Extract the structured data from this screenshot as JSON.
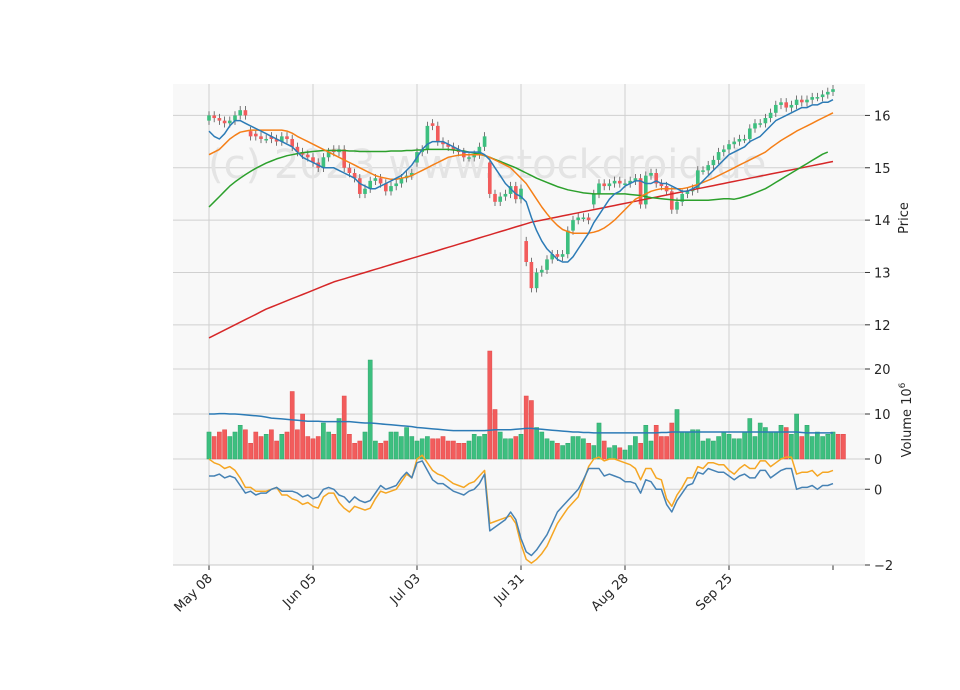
{
  "chart_data": {
    "type": "candlestick",
    "watermark": "(c) 2023 www.stockdroid.de",
    "x_tick_labels": [
      "May 08",
      "Jun 05",
      "Jul 03",
      "Jul 31",
      "Aug 28",
      "Sep 25"
    ],
    "x_tick_index": [
      0,
      20,
      40,
      60,
      80,
      100
    ],
    "colors": {
      "up": "#3dbf7f",
      "down": "#f25c5c",
      "ma_fast": "#2c7bb6",
      "ma_mid": "#f57f17",
      "ma_slow": "#2ca02c",
      "ma_long": "#d62728",
      "vol_ma": "#2c7bb6",
      "osc_a": "#4682b4",
      "osc_b": "#f5a623",
      "grid": "#d0d0d0",
      "panel_bg": "#f8f8f8"
    },
    "price_panel": {
      "ylabel": "Price",
      "ylim": [
        11.5,
        16.6
      ],
      "yticks": [
        "12",
        "13",
        "14",
        "15",
        "16"
      ],
      "close": [
        16.0,
        15.95,
        15.9,
        15.85,
        15.9,
        16.0,
        16.1,
        16.0,
        15.6,
        15.6,
        15.55,
        15.55,
        15.55,
        15.5,
        15.6,
        15.55,
        15.4,
        15.3,
        15.25,
        15.2,
        15.1,
        15.0,
        15.2,
        15.3,
        15.3,
        15.35,
        15.0,
        14.9,
        14.8,
        14.5,
        14.6,
        14.75,
        14.8,
        14.7,
        14.55,
        14.65,
        14.7,
        14.8,
        14.85,
        14.9,
        15.3,
        15.35,
        15.8,
        15.8,
        15.5,
        15.45,
        15.4,
        15.35,
        15.3,
        15.2,
        15.2,
        15.25,
        15.4,
        15.6,
        14.5,
        14.35,
        14.45,
        14.5,
        14.65,
        14.4,
        14.6,
        13.2,
        12.7,
        13.0,
        13.05,
        13.25,
        13.35,
        13.3,
        13.35,
        13.8,
        14.0,
        14.05,
        14.05,
        14.0,
        14.5,
        14.7,
        14.65,
        14.7,
        14.75,
        14.7,
        14.7,
        14.75,
        14.8,
        14.3,
        14.85,
        14.9,
        14.7,
        14.65,
        14.55,
        14.2,
        14.35,
        14.5,
        14.55,
        14.6,
        14.95,
        14.95,
        15.05,
        15.15,
        15.3,
        15.35,
        15.45,
        15.5,
        15.55,
        15.55,
        15.75,
        15.85,
        15.85,
        15.95,
        16.05,
        16.2,
        16.25,
        16.15,
        16.2,
        16.3,
        16.25,
        16.3,
        16.35,
        16.35,
        16.4,
        16.45,
        16.5
      ],
      "open": [
        15.9,
        16.0,
        15.95,
        15.9,
        15.85,
        15.9,
        16.0,
        16.1,
        15.7,
        15.65,
        15.6,
        15.55,
        15.6,
        15.55,
        15.5,
        15.6,
        15.55,
        15.4,
        15.3,
        15.25,
        15.2,
        15.1,
        15.0,
        15.2,
        15.35,
        15.3,
        15.35,
        15.0,
        14.9,
        14.8,
        14.5,
        14.6,
        14.75,
        14.8,
        14.7,
        14.55,
        14.65,
        14.7,
        14.8,
        14.85,
        15.1,
        15.3,
        15.35,
        15.85,
        15.8,
        15.5,
        15.45,
        15.4,
        15.35,
        15.3,
        15.2,
        15.2,
        15.25,
        15.4,
        15.1,
        14.5,
        14.35,
        14.45,
        14.5,
        14.65,
        14.4,
        13.6,
        13.2,
        12.7,
        13.0,
        13.05,
        13.25,
        13.35,
        13.3,
        13.35,
        13.8,
        14.0,
        14.05,
        14.05,
        14.3,
        14.5,
        14.7,
        14.65,
        14.7,
        14.75,
        14.7,
        14.7,
        14.75,
        14.8,
        14.3,
        14.85,
        14.9,
        14.7,
        14.65,
        14.55,
        14.2,
        14.35,
        14.5,
        14.55,
        14.6,
        14.95,
        14.95,
        15.05,
        15.15,
        15.3,
        15.35,
        15.45,
        15.5,
        15.55,
        15.55,
        15.75,
        15.85,
        15.85,
        15.95,
        16.05,
        16.2,
        16.25,
        16.15,
        16.2,
        16.3,
        16.25,
        16.3,
        16.35,
        16.35,
        16.4,
        16.45
      ],
      "ma_fast": [
        15.7,
        15.6,
        15.55,
        15.65,
        15.8,
        15.9,
        15.9,
        15.85,
        15.8,
        15.75,
        15.7,
        15.65,
        15.6,
        15.55,
        15.5,
        15.45,
        15.4,
        15.3,
        15.2,
        15.15,
        15.1,
        15.05,
        15.0,
        15.0,
        15.0,
        14.95,
        14.9,
        14.85,
        14.8,
        14.7,
        14.65,
        14.6,
        14.6,
        14.65,
        14.7,
        14.75,
        14.8,
        14.85,
        14.95,
        15.05,
        15.2,
        15.35,
        15.45,
        15.5,
        15.5,
        15.5,
        15.45,
        15.4,
        15.35,
        15.3,
        15.3,
        15.3,
        15.3,
        15.25,
        15.15,
        15.0,
        14.85,
        14.7,
        14.6,
        14.5,
        14.45,
        14.35,
        14.05,
        13.8,
        13.6,
        13.45,
        13.35,
        13.25,
        13.2,
        13.2,
        13.3,
        13.45,
        13.6,
        13.75,
        13.95,
        14.1,
        14.25,
        14.4,
        14.5,
        14.55,
        14.65,
        14.7,
        14.75,
        14.75,
        14.7,
        14.7,
        14.75,
        14.7,
        14.7,
        14.65,
        14.6,
        14.55,
        14.55,
        14.6,
        14.65,
        14.75,
        14.85,
        14.95,
        15.05,
        15.15,
        15.25,
        15.3,
        15.35,
        15.4,
        15.5,
        15.55,
        15.6,
        15.7,
        15.8,
        15.9,
        15.95,
        16.0,
        16.05,
        16.1,
        16.15,
        16.15,
        16.2,
        16.2,
        16.25,
        16.25,
        16.3
      ],
      "ma_mid": [
        15.25,
        15.3,
        15.35,
        15.45,
        15.55,
        15.62,
        15.68,
        15.7,
        15.72,
        15.72,
        15.72,
        15.72,
        15.72,
        15.72,
        15.72,
        15.7,
        15.66,
        15.6,
        15.55,
        15.5,
        15.45,
        15.4,
        15.35,
        15.3,
        15.25,
        15.2,
        15.15,
        15.1,
        15.05,
        15.0,
        14.95,
        14.9,
        14.85,
        14.82,
        14.8,
        14.78,
        14.78,
        14.8,
        14.82,
        14.85,
        14.9,
        14.95,
        15.0,
        15.05,
        15.1,
        15.15,
        15.2,
        15.22,
        15.24,
        15.25,
        15.25,
        15.25,
        15.25,
        15.24,
        15.2,
        15.15,
        15.1,
        15.05,
        15.0,
        14.9,
        14.8,
        14.7,
        14.55,
        14.4,
        14.25,
        14.12,
        14.0,
        13.9,
        13.82,
        13.78,
        13.75,
        13.75,
        13.75,
        13.75,
        13.77,
        13.8,
        13.85,
        13.92,
        14.0,
        14.1,
        14.2,
        14.3,
        14.4,
        14.45,
        14.5,
        14.55,
        14.58,
        14.6,
        14.6,
        14.6,
        14.6,
        14.6,
        14.62,
        14.65,
        14.68,
        14.72,
        14.76,
        14.8,
        14.85,
        14.9,
        14.95,
        15.0,
        15.05,
        15.1,
        15.15,
        15.2,
        15.25,
        15.3,
        15.38,
        15.45,
        15.52,
        15.58,
        15.64,
        15.7,
        15.75,
        15.8,
        15.85,
        15.9,
        15.95,
        16.0,
        16.05
      ],
      "ma_slow": [
        14.25,
        14.35,
        14.45,
        14.55,
        14.65,
        14.73,
        14.8,
        14.87,
        14.93,
        14.99,
        15.04,
        15.09,
        15.13,
        15.17,
        15.2,
        15.23,
        15.25,
        15.27,
        15.29,
        15.3,
        15.31,
        15.32,
        15.33,
        15.33,
        15.33,
        15.33,
        15.33,
        15.32,
        15.32,
        15.31,
        15.31,
        15.31,
        15.31,
        15.31,
        15.31,
        15.32,
        15.32,
        15.32,
        15.33,
        15.33,
        15.34,
        15.34,
        15.35,
        15.35,
        15.35,
        15.35,
        15.35,
        15.34,
        15.33,
        15.32,
        15.3,
        15.28,
        15.26,
        15.23,
        15.2,
        15.16,
        15.12,
        15.08,
        15.04,
        15.0,
        14.95,
        14.9,
        14.85,
        14.8,
        14.76,
        14.72,
        14.68,
        14.64,
        14.61,
        14.58,
        14.56,
        14.54,
        14.52,
        14.51,
        14.5,
        14.5,
        14.5,
        14.5,
        14.5,
        14.5,
        14.5,
        14.49,
        14.48,
        14.47,
        14.45,
        14.43,
        14.42,
        14.41,
        14.4,
        14.39,
        14.38,
        14.38,
        14.38,
        14.38,
        14.38,
        14.38,
        14.38,
        14.39,
        14.4,
        14.41,
        14.41,
        14.4,
        14.42,
        14.45,
        14.48,
        14.52,
        14.56,
        14.6,
        14.66,
        14.72,
        14.78,
        14.84,
        14.9,
        14.96,
        15.02,
        15.08,
        15.14,
        15.2,
        15.26,
        15.3
      ],
      "ma_long": [
        11.75,
        11.8,
        11.85,
        11.9,
        11.95,
        12.0,
        12.05,
        12.1,
        12.15,
        12.2,
        12.25,
        12.3,
        12.34,
        12.38,
        12.42,
        12.46,
        12.5,
        12.54,
        12.58,
        12.62,
        12.66,
        12.7,
        12.74,
        12.78,
        12.82,
        12.85,
        12.88,
        12.91,
        12.94,
        12.97,
        13.0,
        13.03,
        13.06,
        13.09,
        13.12,
        13.15,
        13.18,
        13.21,
        13.24,
        13.27,
        13.3,
        13.33,
        13.36,
        13.39,
        13.42,
        13.45,
        13.48,
        13.51,
        13.54,
        13.57,
        13.6,
        13.63,
        13.66,
        13.69,
        13.72,
        13.75,
        13.78,
        13.81,
        13.84,
        13.87,
        13.9,
        13.93,
        13.96,
        13.98,
        14.0,
        14.02,
        14.04,
        14.06,
        14.08,
        14.1,
        14.12,
        14.14,
        14.16,
        14.18,
        14.2,
        14.22,
        14.24,
        14.26,
        14.28,
        14.3,
        14.32,
        14.34,
        14.36,
        14.38,
        14.4,
        14.42,
        14.44,
        14.46,
        14.48,
        14.5,
        14.52,
        14.54,
        14.56,
        14.58,
        14.6,
        14.62,
        14.64,
        14.66,
        14.68,
        14.7,
        14.72,
        14.74,
        14.76,
        14.78,
        14.8,
        14.82,
        14.84,
        14.86,
        14.88,
        14.9,
        14.92,
        14.94,
        14.96,
        14.98,
        15.0,
        15.02,
        15.04,
        15.06,
        15.08,
        15.1,
        15.12
      ]
    },
    "volume_panel": {
      "ylabel": "Volume  10^6",
      "ylim": [
        0,
        24
      ],
      "yticks": [
        "0",
        "10",
        "20"
      ],
      "volume": [
        6,
        5,
        6,
        6.5,
        5,
        6,
        7.5,
        6.5,
        3.5,
        6,
        5,
        5.5,
        6.5,
        4,
        5.5,
        6,
        15,
        6.5,
        10,
        5,
        4.5,
        5,
        8,
        6,
        5.5,
        9,
        14,
        5.5,
        3.5,
        4,
        6,
        22,
        4,
        3.5,
        4,
        6,
        6,
        5,
        7,
        5,
        4,
        4.5,
        5,
        4.5,
        4.5,
        5,
        4,
        4,
        3.5,
        3.5,
        4,
        5.5,
        5,
        5.5,
        24,
        11,
        6,
        4.5,
        4.5,
        5,
        5.5,
        14,
        13,
        7,
        6,
        4.5,
        4,
        3.5,
        3,
        3.5,
        5,
        5,
        4.5,
        3.5,
        3,
        8,
        4,
        2.5,
        3,
        2.5,
        2,
        3,
        5,
        3.5,
        7.5,
        4,
        7.5,
        5,
        5,
        8,
        11,
        6,
        6,
        6.5,
        6.5,
        4,
        4.5,
        4,
        5,
        6,
        5.5,
        4.5,
        4.5,
        6,
        9,
        5,
        8,
        7,
        6,
        6,
        7.5,
        7,
        5.5,
        10,
        5,
        7.5,
        5,
        6,
        5,
        5.5,
        6,
        5.5,
        5.5
      ],
      "vol_ma": [
        10,
        10,
        10.1,
        10.1,
        10,
        10,
        9.9,
        9.8,
        9.7,
        9.6,
        9.5,
        9.3,
        9.1,
        9,
        8.9,
        8.8,
        8.7,
        8.6,
        8.5,
        8.4,
        8.4,
        8.4,
        8.3,
        8.3,
        8.3,
        8.3,
        8.3,
        8.3,
        8.2,
        8.1,
        8,
        8,
        7.9,
        7.8,
        7.7,
        7.6,
        7.5,
        7.4,
        7.3,
        7.2,
        7,
        6.9,
        6.8,
        6.7,
        6.6,
        6.5,
        6.4,
        6.3,
        6.3,
        6.3,
        6.3,
        6.3,
        6.3,
        6.3,
        6.4,
        6.5,
        6.5,
        6.5,
        6.5,
        6.6,
        6.7,
        6.8,
        6.8,
        6.7,
        6.6,
        6.5,
        6.4,
        6.3,
        6.2,
        6.1,
        6,
        6,
        5.9,
        5.9,
        5.8,
        5.8,
        5.8,
        5.8,
        5.8,
        5.8,
        5.8,
        5.8,
        5.8,
        5.8,
        5.8,
        5.8,
        5.8,
        5.9,
        5.9,
        6,
        6,
        6,
        6,
        6,
        6,
        6,
        6,
        6,
        6,
        6,
        6,
        6,
        6,
        6,
        6,
        6,
        6,
        6,
        6,
        6,
        6,
        6,
        6,
        6,
        5.9,
        5.8,
        5.8,
        5.8,
        5.8,
        5.8,
        5.8
      ]
    },
    "oscillator_panel": {
      "ylim": [
        -2,
        0.8
      ],
      "yticks": [
        "−2",
        "0"
      ],
      "line_a": [
        0.35,
        0.35,
        0.4,
        0.3,
        0.35,
        0.3,
        0.1,
        -0.1,
        -0.05,
        -0.15,
        -0.1,
        -0.1,
        0.0,
        0.05,
        -0.05,
        -0.05,
        -0.05,
        -0.1,
        -0.2,
        -0.15,
        -0.25,
        -0.2,
        0.0,
        0.05,
        0.0,
        -0.15,
        -0.2,
        -0.35,
        -0.2,
        -0.3,
        -0.35,
        -0.3,
        -0.1,
        0.1,
        0.0,
        0.05,
        0.1,
        0.3,
        0.45,
        0.3,
        0.7,
        0.75,
        0.5,
        0.25,
        0.15,
        0.15,
        0.05,
        -0.05,
        -0.1,
        -0.15,
        -0.05,
        0.0,
        0.15,
        0.4,
        -1.1,
        -1.0,
        -0.9,
        -0.8,
        -0.6,
        -0.8,
        -1.3,
        -1.65,
        -1.75,
        -1.6,
        -1.4,
        -1.2,
        -0.9,
        -0.6,
        -0.45,
        -0.3,
        -0.15,
        0.0,
        0.25,
        0.55,
        0.55,
        0.55,
        0.35,
        0.4,
        0.35,
        0.3,
        0.2,
        0.2,
        0.15,
        -0.1,
        0.25,
        0.2,
        0.0,
        0.0,
        -0.4,
        -0.6,
        -0.3,
        -0.1,
        0.1,
        0.15,
        0.45,
        0.4,
        0.55,
        0.5,
        0.45,
        0.45,
        0.35,
        0.25,
        0.35,
        0.4,
        0.3,
        0.3,
        0.5,
        0.5,
        0.3,
        0.4,
        0.5,
        0.55,
        0.55,
        0.0,
        0.05,
        0.05,
        0.1,
        0.0,
        0.1,
        0.1,
        0.15
      ],
      "line_b": [
        0.8,
        0.7,
        0.65,
        0.55,
        0.6,
        0.5,
        0.3,
        0.05,
        0.05,
        -0.05,
        -0.05,
        -0.05,
        0.0,
        0.05,
        -0.15,
        -0.15,
        -0.25,
        -0.3,
        -0.4,
        -0.35,
        -0.45,
        -0.5,
        -0.2,
        -0.1,
        -0.1,
        -0.35,
        -0.5,
        -0.6,
        -0.45,
        -0.5,
        -0.55,
        -0.5,
        -0.25,
        -0.05,
        -0.1,
        -0.05,
        0.0,
        0.2,
        0.4,
        0.3,
        0.8,
        0.9,
        0.7,
        0.5,
        0.4,
        0.35,
        0.25,
        0.15,
        0.1,
        0.05,
        0.15,
        0.2,
        0.35,
        0.5,
        -0.9,
        -0.85,
        -0.8,
        -0.75,
        -0.7,
        -0.9,
        -1.45,
        -1.85,
        -1.95,
        -1.85,
        -1.7,
        -1.5,
        -1.2,
        -0.9,
        -0.7,
        -0.5,
        -0.35,
        -0.2,
        0.2,
        0.6,
        0.8,
        0.85,
        0.75,
        0.8,
        0.8,
        0.75,
        0.7,
        0.65,
        0.55,
        0.25,
        0.55,
        0.55,
        0.3,
        0.25,
        -0.25,
        -0.45,
        -0.15,
        0.05,
        0.3,
        0.3,
        0.6,
        0.55,
        0.7,
        0.7,
        0.65,
        0.65,
        0.5,
        0.4,
        0.55,
        0.65,
        0.55,
        0.55,
        0.75,
        0.75,
        0.6,
        0.7,
        0.8,
        0.85,
        0.85,
        0.4,
        0.45,
        0.45,
        0.5,
        0.35,
        0.45,
        0.45,
        0.5
      ]
    }
  }
}
